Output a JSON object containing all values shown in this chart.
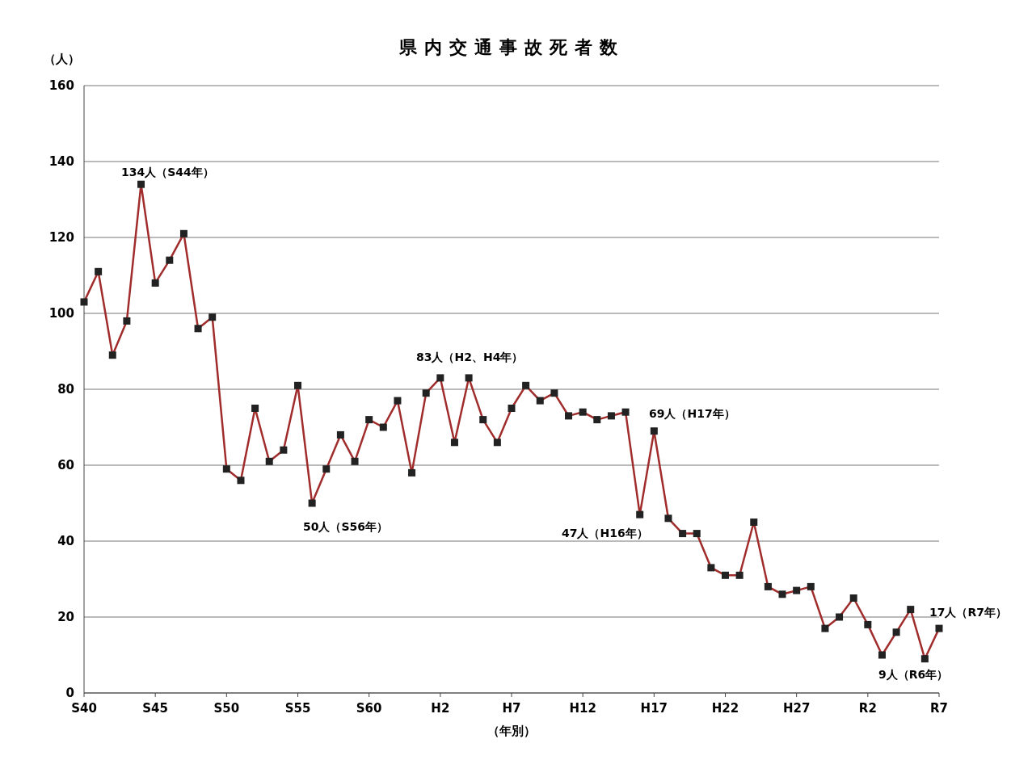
{
  "chart_data": {
    "type": "line",
    "title": "県内交通事故死者数",
    "ylabel": "（人）",
    "xlabel": "（年別）",
    "categories": [
      "S40",
      null,
      null,
      null,
      null,
      "S45",
      null,
      null,
      null,
      null,
      "S50",
      null,
      null,
      null,
      null,
      "S55",
      null,
      null,
      null,
      null,
      "S60",
      null,
      null,
      null,
      null,
      "H2",
      null,
      null,
      null,
      null,
      "H7",
      null,
      null,
      null,
      null,
      "H12",
      null,
      null,
      null,
      null,
      "H17",
      null,
      null,
      null,
      null,
      "H22",
      null,
      null,
      null,
      null,
      "H27",
      null,
      null,
      null,
      null,
      "R2",
      null,
      null,
      null,
      null,
      "R7"
    ],
    "series": [
      {
        "color": "#a02c2c",
        "values": [
          103,
          111,
          89,
          98,
          134,
          108,
          114,
          121,
          96,
          99,
          59,
          56,
          75,
          61,
          64,
          81,
          50,
          59,
          68,
          61,
          72,
          70,
          77,
          58,
          79,
          83,
          66,
          83,
          72,
          66,
          75,
          81,
          77,
          79,
          73,
          74,
          72,
          73,
          74,
          47,
          69,
          46,
          42,
          42,
          33,
          31,
          31,
          45,
          28,
          26,
          27,
          28,
          17,
          20,
          25,
          18,
          10,
          16,
          22,
          9,
          17
        ]
      }
    ],
    "ylim": [
      0,
      160
    ],
    "yticks": [
      0,
      20,
      40,
      60,
      80,
      100,
      120,
      140,
      160
    ],
    "grid": "y",
    "marker": "square",
    "line_style": "solid",
    "annotations": [
      "134人（S44年）",
      "50人（S56年）",
      "83人（H2、H4年）",
      "69人（H17年）",
      "47人（H16年）",
      "17人（R7年）",
      "9人（R6年）"
    ]
  }
}
